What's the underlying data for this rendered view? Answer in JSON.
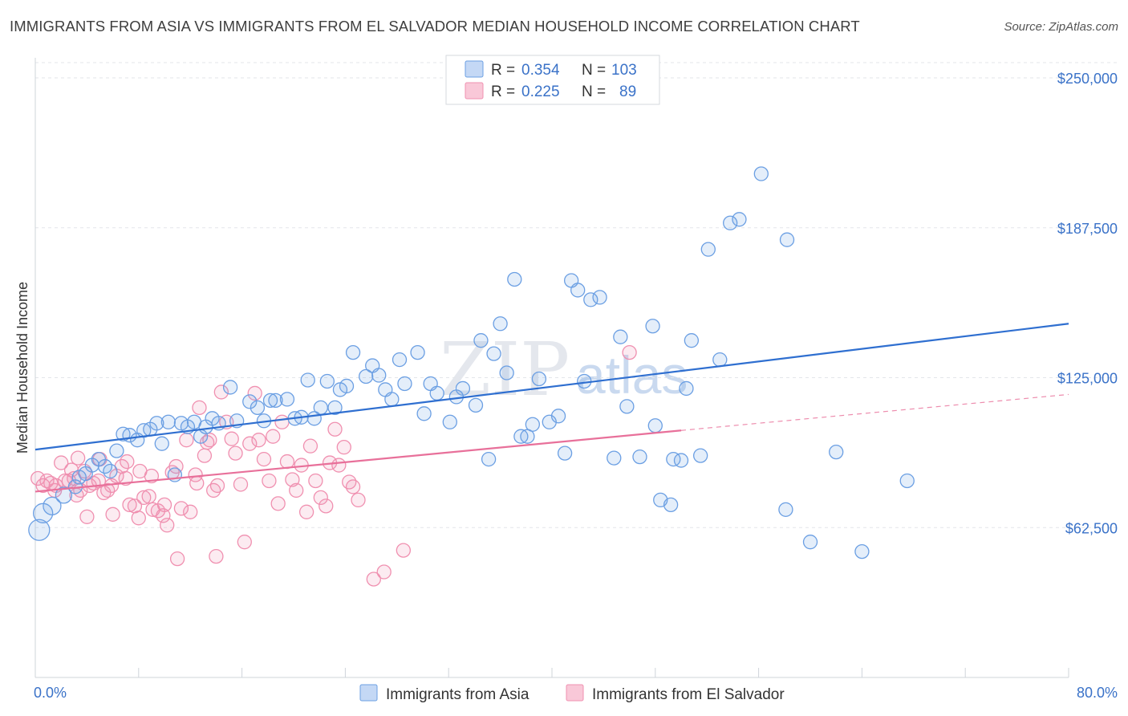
{
  "title": "IMMIGRANTS FROM ASIA VS IMMIGRANTS FROM EL SALVADOR MEDIAN HOUSEHOLD INCOME CORRELATION CHART",
  "source": "Source: ZipAtlas.com",
  "watermark": {
    "zip": "ZIP",
    "atlas": "atlas"
  },
  "legend_top": {
    "rows": [
      {
        "r_label": "R =",
        "r_value": "0.354",
        "n_label": "N =",
        "n_value": "103",
        "color": "#6b9fe3"
      },
      {
        "r_label": "R =",
        "r_value": "0.225",
        "n_label": "N =",
        "n_value": "89",
        "color": "#f090b0"
      }
    ]
  },
  "legend_bottom": [
    {
      "label": "Immigrants from Asia",
      "color": "#6b9fe3"
    },
    {
      "label": "Immigrants from El Salvador",
      "color": "#f090b0"
    }
  ],
  "colors": {
    "asia": "#6b9fe3",
    "asia_line": "#2f6fd0",
    "elsalvador": "#f090b0",
    "elsalvador_line": "#e8709a",
    "axis_text": "#3a72c8"
  },
  "chart_data": {
    "type": "scatter",
    "title": "IMMIGRANTS FROM ASIA VS IMMIGRANTS FROM EL SALVADOR MEDIAN HOUSEHOLD INCOME CORRELATION CHART",
    "xlabel": "",
    "ylabel": "Median Household Income",
    "xlim": [
      0,
      80
    ],
    "ylim": [
      0,
      256000
    ],
    "x_tick_labels": [
      "0.0%",
      "80.0%"
    ],
    "y_ticks": [
      62500,
      125000,
      187500,
      250000
    ],
    "y_tick_labels": [
      "$62,500",
      "$125,000",
      "$187,500",
      "$250,000"
    ],
    "grid": true,
    "legend_position": "top-center",
    "series": [
      {
        "name": "Immigrants from Asia",
        "R": 0.354,
        "N": 103,
        "trend": {
          "x": [
            0,
            80
          ],
          "y": [
            95000,
            147500
          ]
        },
        "points": [
          [
            0.3,
            61500
          ],
          [
            0.6,
            68500
          ],
          [
            1.3,
            71500
          ],
          [
            2.2,
            76000
          ],
          [
            3.1,
            79500
          ],
          [
            3.4,
            83500
          ],
          [
            3.9,
            85000
          ],
          [
            4.4,
            88500
          ],
          [
            4.9,
            91000
          ],
          [
            5.4,
            88000
          ],
          [
            5.8,
            86000
          ],
          [
            6.3,
            94500
          ],
          [
            6.8,
            101500
          ],
          [
            7.3,
            101000
          ],
          [
            7.9,
            99000
          ],
          [
            8.4,
            103000
          ],
          [
            8.9,
            103500
          ],
          [
            9.4,
            106000
          ],
          [
            9.8,
            97500
          ],
          [
            10.3,
            106500
          ],
          [
            10.8,
            84500
          ],
          [
            11.3,
            106000
          ],
          [
            11.8,
            104500
          ],
          [
            12.3,
            106500
          ],
          [
            12.8,
            100500
          ],
          [
            13.2,
            104500
          ],
          [
            13.7,
            108000
          ],
          [
            14.2,
            106000
          ],
          [
            15.1,
            121000
          ],
          [
            15.6,
            107000
          ],
          [
            16.6,
            115000
          ],
          [
            17.2,
            112500
          ],
          [
            17.7,
            107000
          ],
          [
            18.2,
            115500
          ],
          [
            18.6,
            115500
          ],
          [
            19.5,
            116000
          ],
          [
            20.1,
            108000
          ],
          [
            20.6,
            108500
          ],
          [
            21.1,
            124000
          ],
          [
            21.6,
            108000
          ],
          [
            22.1,
            112500
          ],
          [
            22.6,
            123500
          ],
          [
            23.2,
            112500
          ],
          [
            23.6,
            120000
          ],
          [
            24.1,
            121500
          ],
          [
            24.6,
            135500
          ],
          [
            25.6,
            125500
          ],
          [
            26.1,
            130000
          ],
          [
            26.6,
            126000
          ],
          [
            27.1,
            120000
          ],
          [
            27.6,
            116000
          ],
          [
            28.2,
            132500
          ],
          [
            28.6,
            122500
          ],
          [
            29.6,
            135500
          ],
          [
            30.1,
            110000
          ],
          [
            30.6,
            122500
          ],
          [
            31.1,
            118500
          ],
          [
            32.1,
            106500
          ],
          [
            32.6,
            117000
          ],
          [
            33.1,
            120500
          ],
          [
            34.1,
            113500
          ],
          [
            34.5,
            140500
          ],
          [
            35.1,
            91000
          ],
          [
            35.5,
            135000
          ],
          [
            36.0,
            147500
          ],
          [
            36.5,
            127000
          ],
          [
            37.1,
            166000
          ],
          [
            37.6,
            100500
          ],
          [
            38.1,
            100500
          ],
          [
            38.5,
            105500
          ],
          [
            39.0,
            124500
          ],
          [
            39.8,
            106500
          ],
          [
            40.5,
            109000
          ],
          [
            41.0,
            93500
          ],
          [
            41.5,
            165500
          ],
          [
            42.0,
            161500
          ],
          [
            42.5,
            123500
          ],
          [
            43.0,
            157500
          ],
          [
            43.7,
            158500
          ],
          [
            44.8,
            91500
          ],
          [
            45.3,
            142000
          ],
          [
            45.8,
            113000
          ],
          [
            46.8,
            92000
          ],
          [
            47.8,
            146500
          ],
          [
            48.0,
            105000
          ],
          [
            48.4,
            74000
          ],
          [
            49.2,
            72000
          ],
          [
            49.4,
            91000
          ],
          [
            50.0,
            90500
          ],
          [
            50.4,
            120500
          ],
          [
            50.8,
            140500
          ],
          [
            51.5,
            92500
          ],
          [
            52.1,
            178500
          ],
          [
            53.0,
            132500
          ],
          [
            53.8,
            189500
          ],
          [
            54.5,
            191000
          ],
          [
            56.2,
            210000
          ],
          [
            58.1,
            70000
          ],
          [
            58.2,
            182500
          ],
          [
            60.0,
            56500
          ],
          [
            62.0,
            94000
          ],
          [
            64.0,
            52500
          ],
          [
            67.5,
            82000
          ]
        ]
      },
      {
        "name": "Immigrants from El Salvador",
        "R": 0.225,
        "N": 89,
        "trend": {
          "x": [
            0,
            50
          ],
          "y": [
            77500,
            103000
          ]
        },
        "trend_dashed_extension": {
          "x": [
            50,
            80
          ],
          "y": [
            103000,
            118000
          ]
        },
        "points": [
          [
            0.2,
            83000
          ],
          [
            0.6,
            80000
          ],
          [
            0.9,
            82000
          ],
          [
            1.2,
            81000
          ],
          [
            1.6,
            80000
          ],
          [
            2.0,
            89500
          ],
          [
            2.3,
            82000
          ],
          [
            2.6,
            82000
          ],
          [
            3.0,
            83000
          ],
          [
            3.2,
            76000
          ],
          [
            3.5,
            78000
          ],
          [
            3.8,
            86000
          ],
          [
            4.2,
            80000
          ],
          [
            4.5,
            81000
          ],
          [
            4.9,
            82000
          ],
          [
            5.3,
            77000
          ],
          [
            5.6,
            78000
          ],
          [
            5.9,
            80000
          ],
          [
            6.3,
            84000
          ],
          [
            6.7,
            88000
          ],
          [
            7.1,
            90000
          ],
          [
            7.3,
            72000
          ],
          [
            7.7,
            71500
          ],
          [
            8.1,
            86000
          ],
          [
            8.4,
            75000
          ],
          [
            8.8,
            75500
          ],
          [
            9.1,
            70000
          ],
          [
            9.5,
            69500
          ],
          [
            9.9,
            67500
          ],
          [
            10.2,
            63500
          ],
          [
            10.6,
            85500
          ],
          [
            10.9,
            88000
          ],
          [
            11.3,
            70500
          ],
          [
            11.7,
            99000
          ],
          [
            12.0,
            69000
          ],
          [
            12.4,
            84500
          ],
          [
            12.7,
            112500
          ],
          [
            13.1,
            92500
          ],
          [
            13.3,
            98000
          ],
          [
            13.5,
            99000
          ],
          [
            13.8,
            78000
          ],
          [
            14.1,
            80000
          ],
          [
            14.4,
            119000
          ],
          [
            14.8,
            106500
          ],
          [
            15.2,
            99500
          ],
          [
            15.5,
            93500
          ],
          [
            15.9,
            80500
          ],
          [
            16.2,
            56500
          ],
          [
            16.6,
            97500
          ],
          [
            17.0,
            118500
          ],
          [
            17.3,
            99000
          ],
          [
            17.7,
            91000
          ],
          [
            18.1,
            82000
          ],
          [
            18.4,
            100500
          ],
          [
            18.8,
            72500
          ],
          [
            19.1,
            106500
          ],
          [
            19.5,
            90000
          ],
          [
            19.9,
            82500
          ],
          [
            20.2,
            78000
          ],
          [
            20.6,
            88500
          ],
          [
            21.0,
            69000
          ],
          [
            21.3,
            96500
          ],
          [
            21.7,
            82000
          ],
          [
            22.1,
            75000
          ],
          [
            22.5,
            71500
          ],
          [
            22.8,
            89500
          ],
          [
            23.2,
            103500
          ],
          [
            23.5,
            88500
          ],
          [
            23.9,
            96000
          ],
          [
            24.3,
            81500
          ],
          [
            24.6,
            79500
          ],
          [
            25.0,
            74000
          ],
          [
            26.2,
            41000
          ],
          [
            27.0,
            44000
          ],
          [
            28.5,
            53000
          ],
          [
            4.0,
            67000
          ],
          [
            5.0,
            91000
          ],
          [
            6.0,
            68000
          ],
          [
            7.0,
            83000
          ],
          [
            8.0,
            66500
          ],
          [
            9.0,
            84000
          ],
          [
            10.0,
            72000
          ],
          [
            11.0,
            49500
          ],
          [
            12.5,
            81000
          ],
          [
            3.3,
            91500
          ],
          [
            1.5,
            78000
          ],
          [
            46.0,
            135500
          ],
          [
            14.0,
            50500
          ],
          [
            2.8,
            86500
          ]
        ]
      }
    ]
  }
}
